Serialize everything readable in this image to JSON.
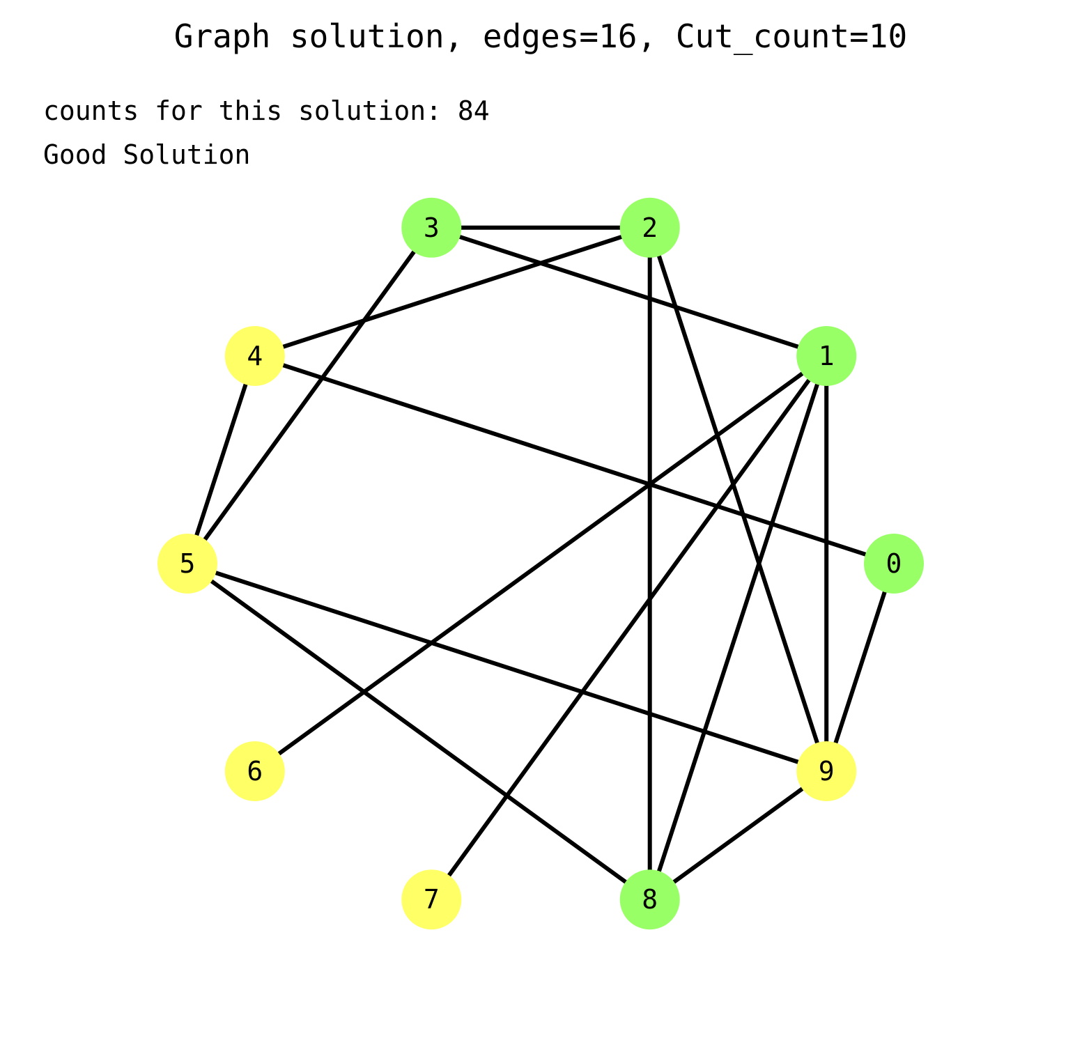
{
  "title": "Graph solution, edges=16, Cut_count=10",
  "info": {
    "counts_line": "counts for this solution: 84",
    "verdict": "Good Solution"
  },
  "colors": {
    "group_a": "#99ff66",
    "group_b": "#ffff66",
    "edge": "#000000"
  },
  "graph": {
    "nodes": [
      {
        "id": "0",
        "label": "0",
        "group": "group_a"
      },
      {
        "id": "1",
        "label": "1",
        "group": "group_a"
      },
      {
        "id": "2",
        "label": "2",
        "group": "group_a"
      },
      {
        "id": "3",
        "label": "3",
        "group": "group_a"
      },
      {
        "id": "4",
        "label": "4",
        "group": "group_b"
      },
      {
        "id": "5",
        "label": "5",
        "group": "group_b"
      },
      {
        "id": "6",
        "label": "6",
        "group": "group_b"
      },
      {
        "id": "7",
        "label": "7",
        "group": "group_b"
      },
      {
        "id": "8",
        "label": "8",
        "group": "group_a"
      },
      {
        "id": "9",
        "label": "9",
        "group": "group_b"
      }
    ],
    "edges": [
      [
        "0",
        "4"
      ],
      [
        "0",
        "9"
      ],
      [
        "1",
        "3"
      ],
      [
        "1",
        "6"
      ],
      [
        "1",
        "7"
      ],
      [
        "1",
        "8"
      ],
      [
        "1",
        "9"
      ],
      [
        "2",
        "3"
      ],
      [
        "2",
        "4"
      ],
      [
        "2",
        "8"
      ],
      [
        "2",
        "9"
      ],
      [
        "3",
        "5"
      ],
      [
        "4",
        "5"
      ],
      [
        "5",
        "8"
      ],
      [
        "5",
        "9"
      ],
      [
        "8",
        "9"
      ]
    ]
  }
}
